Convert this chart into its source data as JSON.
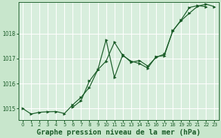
{
  "title": "Graphe pression niveau de la mer (hPa)",
  "background_color": "#c8e6cc",
  "plot_bg_color": "#d8eedd",
  "grid_color": "#b8d8c0",
  "line_color": "#1a5c28",
  "marker_color": "#1a5c28",
  "ylim": [
    1014.55,
    1019.25
  ],
  "yticks": [
    1015,
    1016,
    1017,
    1018
  ],
  "xlim": [
    -0.5,
    23.5
  ],
  "xticks": [
    0,
    1,
    2,
    3,
    4,
    5,
    6,
    7,
    8,
    9,
    10,
    11,
    12,
    13,
    14,
    15,
    16,
    17,
    18,
    19,
    20,
    21,
    22,
    23
  ],
  "series1_x": [
    0,
    1,
    2,
    3,
    4,
    5,
    6,
    7,
    8,
    9,
    10,
    11,
    12,
    13,
    14,
    15,
    16,
    17,
    18,
    19,
    20,
    21,
    22
  ],
  "series1_y": [
    1015.0,
    1014.78,
    1014.85,
    1014.87,
    1014.88,
    1014.8,
    1015.15,
    1015.45,
    1015.85,
    1016.55,
    1017.75,
    1016.25,
    1017.15,
    1016.85,
    1016.92,
    1016.7,
    1017.05,
    1017.18,
    1018.1,
    1018.55,
    1019.05,
    1019.12,
    1019.08
  ],
  "series2_x": [
    6,
    7,
    8,
    9,
    10,
    11,
    12,
    13,
    14,
    15,
    16,
    17,
    18,
    19,
    20,
    21,
    22,
    23
  ],
  "series2_y": [
    1015.05,
    1015.32,
    1016.1,
    1016.55,
    1016.9,
    1017.65,
    1017.12,
    1016.9,
    1016.8,
    1016.62,
    1017.08,
    1017.12,
    1018.12,
    1018.52,
    1018.82,
    1019.1,
    1019.18,
    1019.08
  ],
  "title_fontsize": 7.5,
  "tick_fontsize": 5.5,
  "xtick_fontsize": 5.0
}
